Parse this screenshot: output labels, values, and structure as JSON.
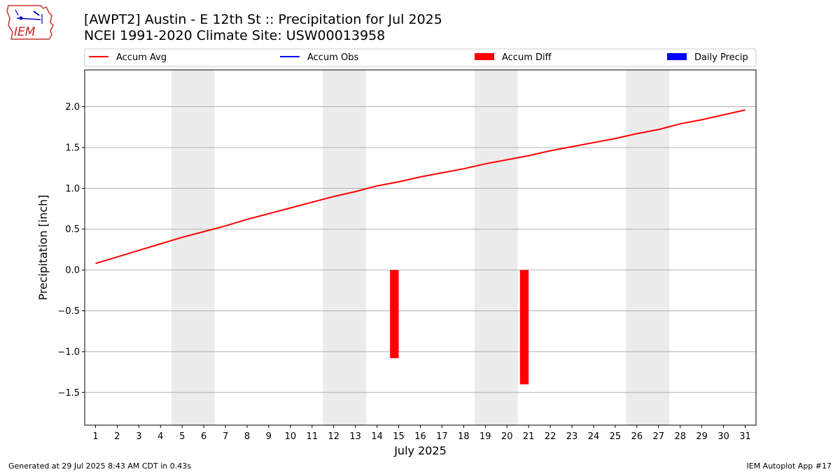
{
  "title": "[AWPT2] Austin - E 12th St :: Precipitation for Jul 2025",
  "subtitle": "NCEI 1991-2020 Climate Site: USW00013958",
  "logo_text": "IEM",
  "footer_left": "Generated at 29 Jul 2025 8:43 AM CDT in 0.43s",
  "footer_right": "IEM Autoplot App #17",
  "colors": {
    "accum_avg": "#ff0000",
    "accum_obs": "#0000ff",
    "accum_diff": "#ff0000",
    "daily_precip": "#0000ff",
    "weekend_shade": "#ececec",
    "grid": "#b0b0b0"
  },
  "chart_data": {
    "type": "line",
    "xlabel": "July 2025",
    "ylabel": "Precipitation [inch]",
    "xlim": [
      0.5,
      31.5
    ],
    "ylim": [
      -1.9,
      2.45
    ],
    "yticks": [
      -1.5,
      -1.0,
      -0.5,
      0.0,
      0.5,
      1.0,
      1.5,
      2.0
    ],
    "ytick_labels": [
      "−1.5",
      "−1.0",
      "−0.5",
      "0.0",
      "0.5",
      "1.0",
      "1.5",
      "2.0"
    ],
    "x": [
      1,
      2,
      3,
      4,
      5,
      6,
      7,
      8,
      9,
      10,
      11,
      12,
      13,
      14,
      15,
      16,
      17,
      18,
      19,
      20,
      21,
      22,
      23,
      24,
      25,
      26,
      27,
      28,
      29,
      30,
      31
    ],
    "xtick_labels": [
      "1",
      "2",
      "3",
      "4",
      "5",
      "6",
      "7",
      "8",
      "9",
      "10",
      "11",
      "12",
      "13",
      "14",
      "15",
      "16",
      "17",
      "18",
      "19",
      "20",
      "21",
      "22",
      "23",
      "24",
      "25",
      "26",
      "27",
      "28",
      "29",
      "30",
      "31"
    ],
    "grid": "horizontal",
    "legend_placement": "top",
    "legend": [
      "Accum Avg",
      "Accum Obs",
      "Accum Diff",
      "Daily Precip"
    ],
    "weekend_ranges": [
      [
        4.5,
        6.5
      ],
      [
        11.5,
        13.5
      ],
      [
        18.5,
        20.5
      ],
      [
        25.5,
        27.5
      ]
    ],
    "series": [
      {
        "name": "Accum Avg",
        "type": "line",
        "values": [
          0.08,
          0.16,
          0.24,
          0.32,
          0.4,
          0.47,
          0.54,
          0.62,
          0.69,
          0.76,
          0.83,
          0.9,
          0.96,
          1.03,
          1.08,
          1.14,
          1.19,
          1.24,
          1.3,
          1.35,
          1.4,
          1.46,
          1.51,
          1.56,
          1.61,
          1.67,
          1.72,
          1.79,
          1.84,
          1.9,
          1.96
        ]
      },
      {
        "name": "Accum Diff",
        "type": "bar",
        "points": [
          {
            "x": 14.8,
            "value": -1.08
          },
          {
            "x": 20.8,
            "value": -1.4
          }
        ]
      }
    ]
  }
}
